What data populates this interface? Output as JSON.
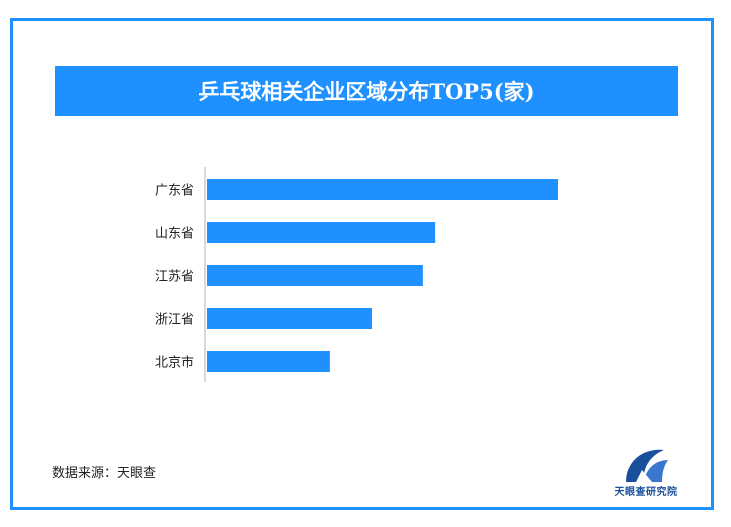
{
  "chart_data": {
    "type": "bar",
    "orientation": "horizontal",
    "title": "乒乓球相关企业区域分布TOP5(家)",
    "categories": [
      "广东省",
      "山东省",
      "江苏省",
      "浙江省",
      "北京市"
    ],
    "values": [
      100,
      65,
      61.5,
      47,
      35
    ],
    "xlim": [
      0,
      100
    ],
    "bar_color": "#1e90ff",
    "grid": false,
    "value_labels_shown": false
  },
  "source": "数据来源：天眼查",
  "logo": {
    "text": "天眼查研究院",
    "icon": "tianyancha-logo-icon"
  },
  "colors": {
    "accent": "#1e90ff",
    "logo_blue": "#1a4f9c"
  }
}
